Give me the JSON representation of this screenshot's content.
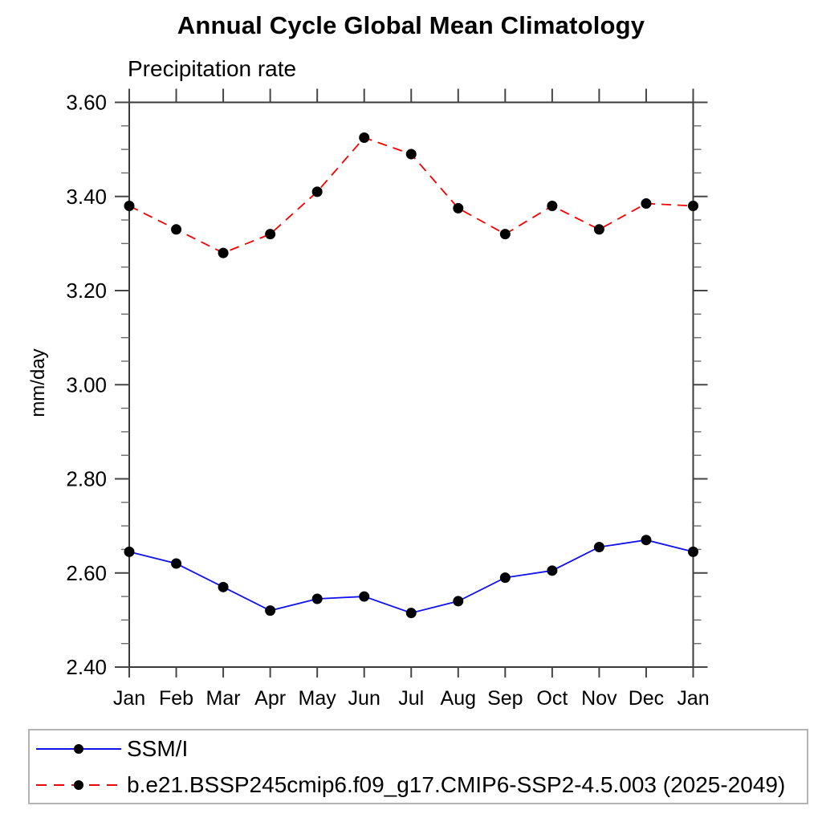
{
  "chart_data": {
    "type": "line",
    "title": "Annual Cycle Global Mean Climatology",
    "subtitle": "Precipitation rate",
    "xlabel": "",
    "ylabel": "mm/day",
    "categories": [
      "Jan",
      "Feb",
      "Mar",
      "Apr",
      "May",
      "Jun",
      "Jul",
      "Aug",
      "Sep",
      "Oct",
      "Nov",
      "Dec",
      "Jan"
    ],
    "ylim": [
      2.4,
      3.6
    ],
    "ytick_major": 0.2,
    "ytick_minor": 0.05,
    "grid": false,
    "legend_position": "bottom",
    "series": [
      {
        "name": "SSM/I",
        "color": "#1111ee",
        "style": "solid",
        "marker": "circle",
        "marker_color": "#000000",
        "values": [
          2.645,
          2.62,
          2.57,
          2.52,
          2.545,
          2.55,
          2.515,
          2.54,
          2.59,
          2.605,
          2.655,
          2.67,
          2.645
        ]
      },
      {
        "name": "b.e21.BSSP245cmip6.f09_g17.CMIP6-SSP2-4.5.003 (2025-2049)",
        "color": "#f40000",
        "style": "dashed",
        "marker": "circle",
        "marker_color": "#000000",
        "values": [
          3.38,
          3.33,
          3.28,
          3.32,
          3.41,
          3.525,
          3.49,
          3.375,
          3.32,
          3.38,
          3.33,
          3.385,
          3.38
        ]
      }
    ],
    "axis_color": "#3a3a3a"
  }
}
